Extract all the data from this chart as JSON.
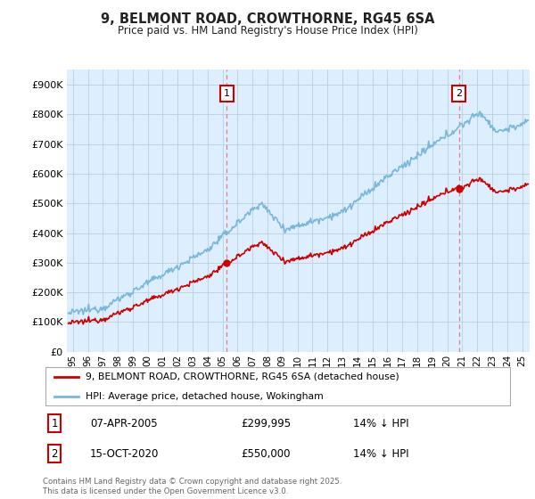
{
  "title": "9, BELMONT ROAD, CROWTHORNE, RG45 6SA",
  "subtitle": "Price paid vs. HM Land Registry's House Price Index (HPI)",
  "legend_line1": "9, BELMONT ROAD, CROWTHORNE, RG45 6SA (detached house)",
  "legend_line2": "HPI: Average price, detached house, Wokingham",
  "annotation1_label": "1",
  "annotation1_date": "07-APR-2005",
  "annotation1_price": "£299,995",
  "annotation1_hpi": "14% ↓ HPI",
  "annotation2_label": "2",
  "annotation2_date": "15-OCT-2020",
  "annotation2_price": "£550,000",
  "annotation2_hpi": "14% ↓ HPI",
  "footer": "Contains HM Land Registry data © Crown copyright and database right 2025.\nThis data is licensed under the Open Government Licence v3.0.",
  "hpi_color": "#7ab8d9",
  "price_color": "#cc0000",
  "dashed_line_color": "#e08080",
  "annotation_box_color": "#cc0000",
  "plot_bg_color": "#ddeeff",
  "background_color": "#ffffff",
  "grid_color": "#b8cfe0",
  "ylim": [
    0,
    950000
  ],
  "yticks": [
    0,
    100000,
    200000,
    300000,
    400000,
    500000,
    600000,
    700000,
    800000,
    900000
  ],
  "xlim_start": 1994.6,
  "xlim_end": 2025.5,
  "sale1_year": 2005.27,
  "sale1_price": 299995,
  "sale2_year": 2020.79,
  "sale2_price": 550000
}
